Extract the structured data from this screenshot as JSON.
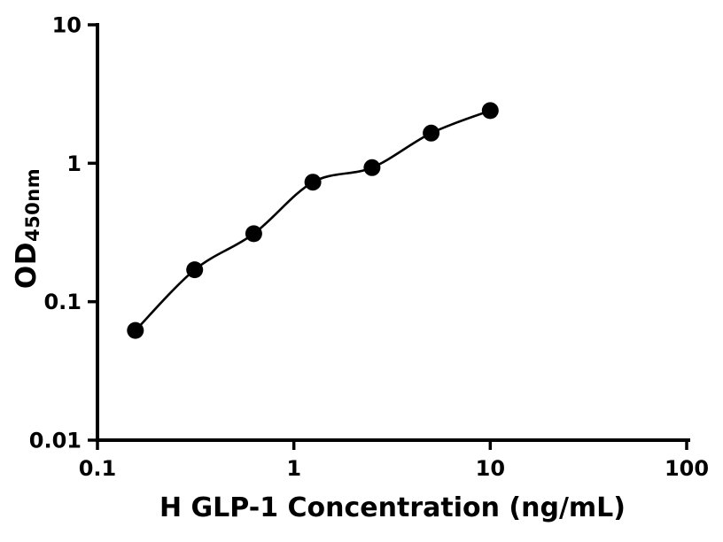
{
  "chart_data": {
    "type": "scatter",
    "title": "",
    "xlabel": "H GLP-1 Concentration (ng/mL)",
    "ylabel_main": "OD",
    "ylabel_sub": "450nm",
    "xscale": "log",
    "yscale": "log",
    "xlim": [
      0.1,
      100
    ],
    "ylim": [
      0.01,
      10
    ],
    "grid": false,
    "legend": null,
    "marker_color": "#000000",
    "line_color": "#000000",
    "background": "#ffffff",
    "x": [
      0.156,
      0.3125,
      0.625,
      1.25,
      2.5,
      5,
      10
    ],
    "y": [
      0.062,
      0.17,
      0.31,
      0.73,
      0.93,
      1.65,
      2.4
    ],
    "fit_line": "smooth curve through data points",
    "x_ticks": [
      {
        "value": 0.1,
        "label": "0.1"
      },
      {
        "value": 1,
        "label": "1"
      },
      {
        "value": 10,
        "label": "10"
      },
      {
        "value": 100,
        "label": "100"
      }
    ],
    "y_ticks": [
      {
        "value": 0.01,
        "label": "0.01"
      },
      {
        "value": 0.1,
        "label": "0.1"
      },
      {
        "value": 1,
        "label": "1"
      },
      {
        "value": 10,
        "label": "10"
      }
    ]
  }
}
